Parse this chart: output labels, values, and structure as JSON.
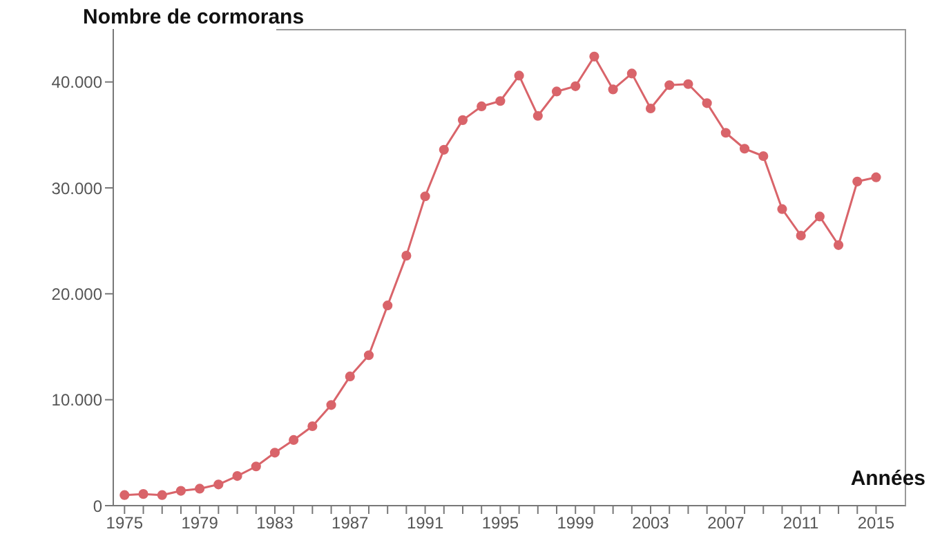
{
  "chart_data": {
    "type": "line",
    "ylabel": "Nombre de cormorans",
    "xlabel": "Années",
    "x": [
      1975,
      1976,
      1977,
      1978,
      1979,
      1980,
      1981,
      1982,
      1983,
      1984,
      1985,
      1986,
      1987,
      1988,
      1989,
      1990,
      1991,
      1992,
      1993,
      1994,
      1995,
      1996,
      1997,
      1998,
      1999,
      2000,
      2001,
      2002,
      2003,
      2004,
      2005,
      2006,
      2007,
      2008,
      2009,
      2010,
      2011,
      2012,
      2013,
      2014,
      2015
    ],
    "series": [
      {
        "color": "#d9646a",
        "values": [
          1000,
          1100,
          1000,
          1400,
          1600,
          2000,
          2800,
          3700,
          5000,
          6200,
          7500,
          9500,
          12200,
          14200,
          18900,
          23600,
          29200,
          33600,
          36400,
          37700,
          38200,
          40600,
          36800,
          39100,
          39600,
          42400,
          39300,
          40800,
          37500,
          39700,
          39800,
          38000,
          35200,
          33700,
          33000,
          28000,
          25500,
          27300,
          24600,
          30600,
          31000
        ]
      }
    ],
    "xlim": [
      1974.4,
      2016.6
    ],
    "xticks": [
      1975,
      {
        "value": 1976,
        "label": null
      },
      {
        "value": 1977,
        "label": null
      },
      {
        "value": 1978,
        "label": null
      },
      1979,
      {
        "value": 1980,
        "label": null
      },
      {
        "value": 1981,
        "label": null
      },
      {
        "value": 1982,
        "label": null
      },
      1983,
      {
        "value": 1984,
        "label": null
      },
      {
        "value": 1985,
        "label": null
      },
      {
        "value": 1986,
        "label": null
      },
      1987,
      {
        "value": 1988,
        "label": null
      },
      {
        "value": 1989,
        "label": null
      },
      {
        "value": 1990,
        "label": null
      },
      1991,
      {
        "value": 1992,
        "label": null
      },
      {
        "value": 1993,
        "label": null
      },
      {
        "value": 1994,
        "label": null
      },
      1995,
      {
        "value": 1996,
        "label": null
      },
      {
        "value": 1997,
        "label": null
      },
      {
        "value": 1998,
        "label": null
      },
      1999,
      {
        "value": 2000,
        "label": null
      },
      {
        "value": 2001,
        "label": null
      },
      {
        "value": 2002,
        "label": null
      },
      2003,
      {
        "value": 2004,
        "label": null
      },
      {
        "value": 2005,
        "label": null
      },
      {
        "value": 2006,
        "label": null
      },
      2007,
      {
        "value": 2008,
        "label": null
      },
      {
        "value": 2009,
        "label": null
      },
      {
        "value": 2010,
        "label": null
      },
      2011,
      {
        "value": 2012,
        "label": null
      },
      {
        "value": 2013,
        "label": null
      },
      {
        "value": 2014,
        "label": null
      },
      2015
    ],
    "ylim": [
      0,
      45000
    ],
    "yticks": [
      0,
      {
        "value": 10000,
        "label": "10.000"
      },
      {
        "value": 20000,
        "label": "20.000"
      },
      {
        "value": 30000,
        "label": "30.000"
      },
      {
        "value": 40000,
        "label": "40.000"
      }
    ],
    "grid": false,
    "legend": false,
    "marker": "circle",
    "line_style": "solid"
  }
}
